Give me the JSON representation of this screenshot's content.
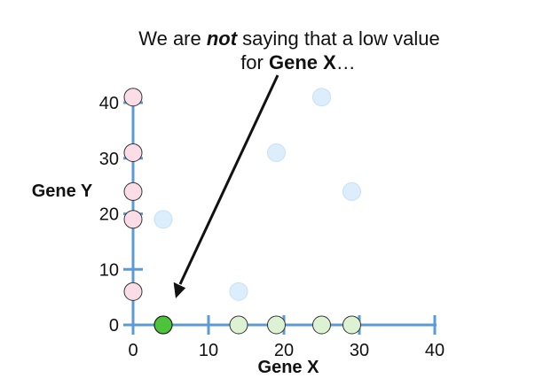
{
  "chart_data": {
    "type": "scatter",
    "title": "",
    "xlabel": "Gene X",
    "ylabel": "Gene Y",
    "xlim": [
      0,
      40
    ],
    "ylim": [
      0,
      40
    ],
    "xticks": [
      0,
      10,
      20,
      30,
      40
    ],
    "yticks": [
      0,
      10,
      20,
      30,
      40
    ],
    "grid": false,
    "colors": {
      "axis": "#5b9bd5",
      "background_points_fill": "#dcedfb",
      "background_points_stroke": "#c9e0f4",
      "y_axis_points_fill": "#fbdde8",
      "x_axis_points_fill": "#ddf2d2",
      "highlight_point_fill": "#4cc43a",
      "arrow": "#111111"
    },
    "series": [
      {
        "role": "background",
        "points": [
          {
            "x": 4,
            "y": 19
          },
          {
            "x": 14,
            "y": 6
          },
          {
            "x": 19,
            "y": 31
          },
          {
            "x": 25,
            "y": 41
          },
          {
            "x": 29,
            "y": 24
          }
        ]
      },
      {
        "role": "on-y-axis",
        "points": [
          {
            "x": 0,
            "y": 41
          },
          {
            "x": 0,
            "y": 31
          },
          {
            "x": 0,
            "y": 24
          },
          {
            "x": 0,
            "y": 19
          },
          {
            "x": 0,
            "y": 6
          }
        ]
      },
      {
        "role": "on-x-axis",
        "points": [
          {
            "x": 14,
            "y": 0
          },
          {
            "x": 19,
            "y": 0
          },
          {
            "x": 25,
            "y": 0
          },
          {
            "x": 29,
            "y": 0
          }
        ]
      },
      {
        "role": "highlighted",
        "points": [
          {
            "x": 4,
            "y": 0
          }
        ]
      }
    ],
    "annotation": {
      "line1_before": "We are ",
      "line1_emphasis": "not",
      "line1_after": " saying that a low value",
      "line2_before": "for ",
      "line2_emphasis": "Gene X",
      "line2_after": "…"
    }
  }
}
